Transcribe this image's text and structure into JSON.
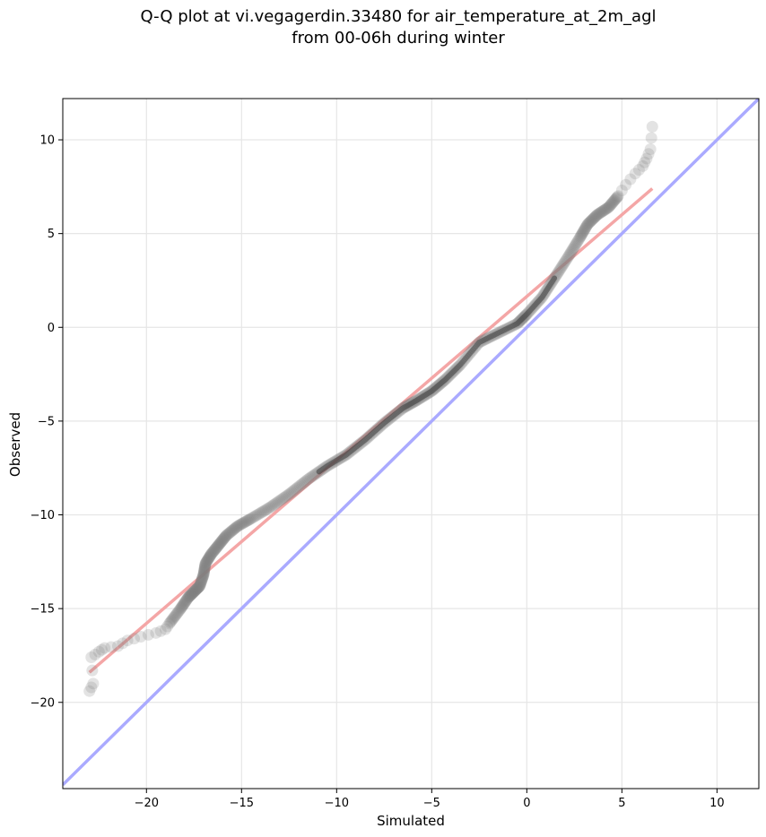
{
  "chart_data": {
    "type": "scatter",
    "title": [
      "Q-Q plot at vi.vegagerdin.33480 for air_temperature_at_2m_agl",
      "from 00-06h during winter"
    ],
    "xlabel": "Simulated",
    "ylabel": "Observed",
    "xlim": [
      -24.4,
      12.2
    ],
    "ylim": [
      -24.6,
      12.2
    ],
    "xticks": [
      -20,
      -15,
      -10,
      -5,
      0,
      5,
      10
    ],
    "yticks": [
      10,
      5,
      0,
      -5,
      -10,
      -15,
      -20
    ],
    "tick_label_format": "minus-sign",
    "grid": true,
    "identity_line": {
      "color": "#aaaaff",
      "from": [
        -24.4,
        -24.4
      ],
      "to": [
        12.2,
        12.2
      ]
    },
    "fit_line": {
      "color": "#f4a6a6",
      "from": [
        -23.0,
        -18.4
      ],
      "to": [
        6.6,
        7.4
      ]
    },
    "point_color": "#808080",
    "quantile_curve": [
      [
        -23.0,
        -19.4
      ],
      [
        -22.8,
        -19.0
      ],
      [
        -22.9,
        -17.6
      ],
      [
        -22.5,
        -17.3
      ],
      [
        -22.2,
        -17.1
      ],
      [
        -21.5,
        -17.0
      ],
      [
        -21.0,
        -16.7
      ],
      [
        -20.3,
        -16.5
      ],
      [
        -19.5,
        -16.3
      ],
      [
        -19.0,
        -16.1
      ],
      [
        -18.8,
        -15.8
      ],
      [
        -18.2,
        -15.0
      ],
      [
        -17.8,
        -14.4
      ],
      [
        -17.5,
        -14.1
      ],
      [
        -17.2,
        -13.8
      ],
      [
        -17.0,
        -13.2
      ],
      [
        -16.9,
        -12.6
      ],
      [
        -16.6,
        -12.1
      ],
      [
        -16.2,
        -11.6
      ],
      [
        -15.8,
        -11.1
      ],
      [
        -15.2,
        -10.6
      ],
      [
        -14.5,
        -10.2
      ],
      [
        -13.5,
        -9.6
      ],
      [
        -12.5,
        -8.9
      ],
      [
        -11.5,
        -8.1
      ],
      [
        -10.5,
        -7.4
      ],
      [
        -9.5,
        -6.8
      ],
      [
        -8.5,
        -6.0
      ],
      [
        -7.5,
        -5.1
      ],
      [
        -6.5,
        -4.3
      ],
      [
        -5.8,
        -3.9
      ],
      [
        -5.0,
        -3.4
      ],
      [
        -4.3,
        -2.8
      ],
      [
        -3.5,
        -2.0
      ],
      [
        -2.5,
        -0.8
      ],
      [
        -1.5,
        -0.3
      ],
      [
        -0.5,
        0.2
      ],
      [
        0.0,
        0.7
      ],
      [
        0.8,
        1.6
      ],
      [
        1.5,
        2.7
      ],
      [
        2.2,
        3.8
      ],
      [
        2.8,
        4.8
      ],
      [
        3.2,
        5.5
      ],
      [
        3.7,
        6.0
      ],
      [
        4.3,
        6.4
      ],
      [
        4.8,
        7.0
      ],
      [
        5.2,
        7.6
      ],
      [
        5.7,
        8.2
      ],
      [
        6.1,
        8.6
      ],
      [
        6.3,
        9.0
      ],
      [
        6.5,
        9.5
      ],
      [
        6.6,
        10.7
      ]
    ]
  }
}
